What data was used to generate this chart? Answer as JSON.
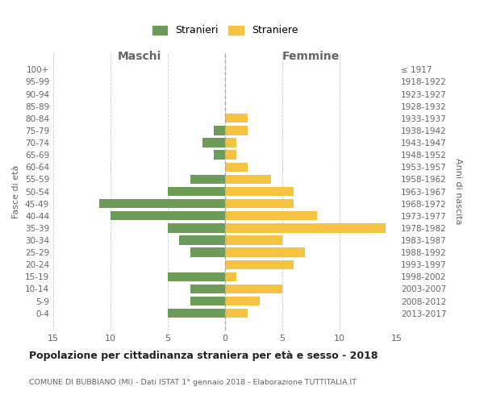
{
  "age_groups": [
    "0-4",
    "5-9",
    "10-14",
    "15-19",
    "20-24",
    "25-29",
    "30-34",
    "35-39",
    "40-44",
    "45-49",
    "50-54",
    "55-59",
    "60-64",
    "65-69",
    "70-74",
    "75-79",
    "80-84",
    "85-89",
    "90-94",
    "95-99",
    "100+"
  ],
  "birth_years": [
    "2013-2017",
    "2008-2012",
    "2003-2007",
    "1998-2002",
    "1993-1997",
    "1988-1992",
    "1983-1987",
    "1978-1982",
    "1973-1977",
    "1968-1972",
    "1963-1967",
    "1958-1962",
    "1953-1957",
    "1948-1952",
    "1943-1947",
    "1938-1942",
    "1933-1937",
    "1928-1932",
    "1923-1927",
    "1918-1922",
    "≤ 1917"
  ],
  "maschi": [
    5,
    3,
    3,
    5,
    0,
    3,
    4,
    5,
    10,
    11,
    5,
    3,
    0,
    1,
    2,
    1,
    0,
    0,
    0,
    0,
    0
  ],
  "femmine": [
    2,
    3,
    5,
    1,
    6,
    7,
    5,
    14,
    8,
    6,
    6,
    4,
    2,
    1,
    1,
    2,
    2,
    0,
    0,
    0,
    0
  ],
  "color_maschi": "#6d9b5a",
  "color_femmine": "#f5c242",
  "title": "Popolazione per cittadinanza straniera per età e sesso - 2018",
  "subtitle": "COMUNE DI BUBBIANO (MI) - Dati ISTAT 1° gennaio 2018 - Elaborazione TUTTITALIA.IT",
  "label_maschi_header": "Maschi",
  "label_femmine_header": "Femmine",
  "ylabel_left": "Fasce di età",
  "ylabel_right": "Anni di nascita",
  "legend_maschi": "Stranieri",
  "legend_femmine": "Straniere",
  "xlim": 15,
  "bg_color": "#ffffff",
  "grid_color": "#cccccc"
}
